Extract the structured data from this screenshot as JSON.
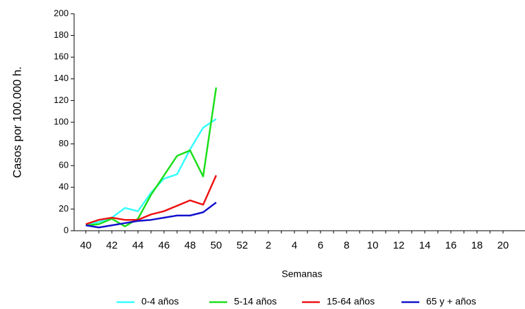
{
  "chart_data": {
    "type": "line",
    "x_label": "Semanas",
    "y_label": "Casos por 100.000 h.",
    "categories": [
      "40",
      null,
      "42",
      null,
      "44",
      null,
      "46",
      null,
      "48",
      null,
      "50",
      null,
      "52",
      null,
      "2",
      null,
      "4",
      null,
      "6",
      null,
      "8",
      null,
      "10",
      null,
      "12",
      null,
      "14",
      null,
      "16",
      null,
      "18",
      null,
      "20"
    ],
    "series": [
      {
        "name": "0-4 años",
        "color": "#33ffff",
        "values": [
          5,
          8,
          12,
          21,
          18,
          35,
          48,
          52,
          75,
          95,
          103,
          null,
          null,
          null,
          null,
          null,
          null,
          null,
          null,
          null,
          null,
          null,
          null,
          null,
          null,
          null,
          null,
          null,
          null,
          null,
          null,
          null,
          null
        ]
      },
      {
        "name": "5-14 años",
        "color": "#1adf1a",
        "values": [
          5,
          6,
          11,
          4,
          11,
          33,
          51,
          69,
          74,
          50,
          132,
          null,
          null,
          null,
          null,
          null,
          null,
          null,
          null,
          null,
          null,
          null,
          null,
          null,
          null,
          null,
          null,
          null,
          null,
          null,
          null,
          null,
          null
        ]
      },
      {
        "name": "15-64 años",
        "color": "#ee1111",
        "values": [
          6,
          10,
          12,
          10,
          10,
          15,
          18,
          23,
          28,
          24,
          51,
          null,
          null,
          null,
          null,
          null,
          null,
          null,
          null,
          null,
          null,
          null,
          null,
          null,
          null,
          null,
          null,
          null,
          null,
          null,
          null,
          null,
          null
        ]
      },
      {
        "name": "65 y + años",
        "color": "#1111cc",
        "values": [
          5,
          3,
          5,
          7,
          9,
          10,
          12,
          14,
          14,
          17,
          26,
          null,
          null,
          null,
          null,
          null,
          null,
          null,
          null,
          null,
          null,
          null,
          null,
          null,
          null,
          null,
          null,
          null,
          null,
          null,
          null,
          null,
          null
        ]
      }
    ],
    "ylim": [
      0,
      200
    ],
    "yticks": [
      0,
      20,
      40,
      60,
      80,
      100,
      120,
      140,
      160,
      180,
      200
    ],
    "grid": false
  }
}
